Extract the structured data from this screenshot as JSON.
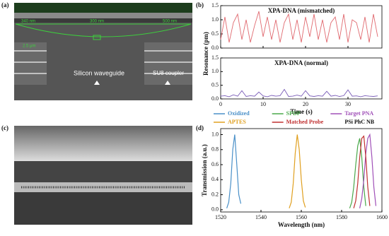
{
  "figure": {
    "panel_a": {
      "label": "(a)",
      "dim1": "340 nm",
      "dim2": "300 nm",
      "dim3": "500 nm",
      "dim4": "2.5 μm",
      "waveguide": "Silicon waveguide",
      "coupler": "SU8 coupler"
    },
    "panel_b": {
      "label": "(b)"
    },
    "panel_c": {
      "label": "(c)"
    },
    "panel_d": {
      "label": "(d)"
    }
  },
  "chart_data": [
    {
      "type": "line",
      "title": "XPA-DNA (mismatched)",
      "ylabel": "Resonance (pm)",
      "color": "#e06a70",
      "x": [
        0,
        1,
        2,
        3,
        4,
        5,
        6,
        7,
        8,
        9,
        10,
        11,
        12,
        13,
        14,
        15,
        16,
        17,
        18,
        19,
        20,
        21,
        22,
        23,
        24,
        25,
        26,
        27,
        28,
        29,
        30,
        31,
        32,
        33,
        34,
        35,
        36,
        37
      ],
      "values": [
        0.3,
        1.1,
        0.2,
        0.9,
        1.2,
        0.3,
        1.0,
        0.2,
        0.8,
        1.3,
        0.4,
        1.1,
        0.3,
        1.0,
        0.2,
        0.9,
        1.2,
        0.3,
        1.0,
        0.2,
        1.1,
        0.4,
        1.2,
        0.3,
        1.0,
        0.2,
        0.9,
        1.1,
        0.3,
        1.2,
        0.2,
        1.0,
        0.9,
        0.3,
        1.1,
        0.2,
        1.2,
        0.4
      ],
      "xlim": [
        0,
        38
      ],
      "ylim": [
        0,
        1.5
      ],
      "xticks": [
        0,
        10,
        20,
        30
      ],
      "yticks": [
        {
          "value": 0,
          "label": "0.0"
        },
        0.5,
        {
          "value": 1,
          "label": "1.0"
        },
        1.5
      ]
    },
    {
      "type": "line",
      "title": "XPA-DNA (normal)",
      "xlabel": "Time (s)",
      "color": "#7a5db8",
      "x": [
        0,
        1,
        2,
        3,
        4,
        5,
        6,
        7,
        8,
        9,
        10,
        11,
        12,
        13,
        14,
        15,
        16,
        17,
        18,
        19,
        20,
        21,
        22,
        23,
        24,
        25,
        26,
        27,
        28,
        29,
        30,
        31,
        32,
        33,
        34,
        35,
        36,
        37
      ],
      "values": [
        0.1,
        0.12,
        0.08,
        0.15,
        0.1,
        0.3,
        0.09,
        0.12,
        0.1,
        0.25,
        0.11,
        0.08,
        0.13,
        0.1,
        0.12,
        0.35,
        0.09,
        0.1,
        0.14,
        0.1,
        0.3,
        0.11,
        0.09,
        0.12,
        0.1,
        0.28,
        0.1,
        0.13,
        0.09,
        0.12,
        0.33,
        0.1,
        0.11,
        0.08,
        0.12,
        0.1,
        0.09,
        0.11
      ],
      "xlim": [
        0,
        38
      ],
      "ylim": [
        0,
        1.5
      ],
      "xticks": [
        0,
        10,
        20,
        30
      ],
      "yticks": [
        {
          "value": 0,
          "label": "0.0"
        },
        0.5,
        {
          "value": 1,
          "label": "1.0"
        },
        1.5
      ]
    },
    {
      "type": "line",
      "xlabel": "Wavelength (nm)",
      "ylabel": "Transmission (a.u.)",
      "annotation": "PSi PhC NB",
      "xlim": [
        1520,
        1600
      ],
      "ylim": [
        -0.03,
        1.08
      ],
      "xticks": [
        1520,
        1540,
        1560,
        1580,
        1600
      ],
      "yticks": [
        {
          "value": 0,
          "label": "0.0"
        },
        0.2,
        0.4,
        0.6,
        0.8,
        {
          "value": 1,
          "label": "1.0"
        }
      ],
      "series": [
        {
          "name": "Oxidized",
          "color": "#4a90c8",
          "x": [
            1523,
            1524,
            1525,
            1526,
            1527,
            1528,
            1529,
            1530
          ],
          "values": [
            0.02,
            0.1,
            0.35,
            0.8,
            1.0,
            0.6,
            0.2,
            0.08
          ]
        },
        {
          "name": "SPDP",
          "color": "#4aa84a",
          "x": [
            1584,
            1585,
            1586,
            1587,
            1588,
            1589,
            1590,
            1591,
            1592
          ],
          "values": [
            0.02,
            0.1,
            0.3,
            0.6,
            0.85,
            0.95,
            0.7,
            0.3,
            0.05
          ]
        },
        {
          "name": "Target PNA",
          "color": "#a050b8",
          "x": [
            1589,
            1590,
            1591,
            1592,
            1593,
            1594,
            1595,
            1596,
            1597
          ],
          "values": [
            0.02,
            0.15,
            0.4,
            0.75,
            0.95,
            1.0,
            0.7,
            0.3,
            0.05
          ]
        },
        {
          "name": "APTES",
          "color": "#e0a020",
          "x": [
            1554,
            1555,
            1556,
            1557,
            1558,
            1559,
            1560,
            1561,
            1562
          ],
          "values": [
            0.02,
            0.1,
            0.35,
            0.75,
            1.0,
            0.8,
            0.4,
            0.12,
            0.03
          ]
        },
        {
          "name": "Matched Probe",
          "color": "#c03030",
          "x": [
            1586,
            1587,
            1588,
            1589,
            1590,
            1591,
            1592,
            1593,
            1594
          ],
          "values": [
            0.02,
            0.12,
            0.35,
            0.7,
            0.95,
            0.98,
            0.7,
            0.3,
            0.05
          ]
        }
      ]
    }
  ]
}
